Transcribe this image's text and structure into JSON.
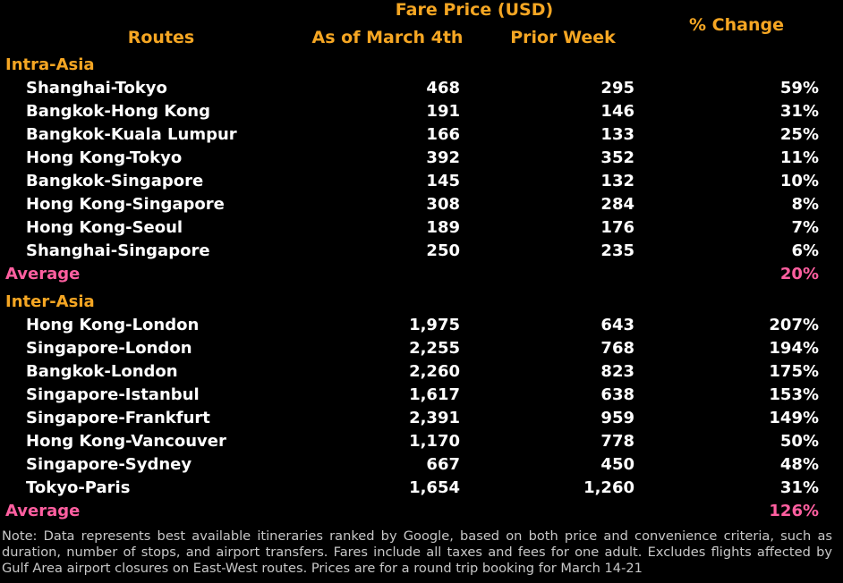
{
  "header": {
    "group": "Fare Price (USD)",
    "columns": [
      "Routes",
      "As of March 4th",
      "Prior Week",
      "% Change"
    ]
  },
  "sections": [
    {
      "title": "Intra-Asia",
      "rows": [
        [
          "Shanghai-Tokyo",
          "468",
          "295",
          "59%"
        ],
        [
          "Bangkok-Hong Kong",
          "191",
          "146",
          "31%"
        ],
        [
          "Bangkok-Kuala Lumpur",
          "166",
          "133",
          "25%"
        ],
        [
          "Hong Kong-Tokyo",
          "392",
          "352",
          "11%"
        ],
        [
          "Bangkok-Singapore",
          "145",
          "132",
          "10%"
        ],
        [
          "Hong Kong-Singapore",
          "308",
          "284",
          "8%"
        ],
        [
          "Hong Kong-Seoul",
          "189",
          "176",
          "7%"
        ],
        [
          "Shanghai-Singapore",
          "250",
          "235",
          "6%"
        ]
      ],
      "average": {
        "label": "Average",
        "change": "20%"
      }
    },
    {
      "title": "Inter-Asia",
      "rows": [
        [
          "Hong Kong-London",
          "1,975",
          "643",
          "207%"
        ],
        [
          "Singapore-London",
          "2,255",
          "768",
          "194%"
        ],
        [
          "Bangkok-London",
          "2,260",
          "823",
          "175%"
        ],
        [
          "Singapore-Istanbul",
          "1,617",
          "638",
          "153%"
        ],
        [
          "Singapore-Frankfurt",
          "2,391",
          "959",
          "149%"
        ],
        [
          "Hong Kong-Vancouver",
          "1,170",
          "778",
          "50%"
        ],
        [
          "Singapore-Sydney",
          "667",
          "450",
          "48%"
        ],
        [
          "Tokyo-Paris",
          "1,654",
          "1,260",
          "31%"
        ]
      ],
      "average": {
        "label": "Average",
        "change": "126%"
      }
    }
  ],
  "note": "Note: Data represents best available itineraries ranked by Google, based on both price and convenience criteria, such as duration, number of stops, and airport transfers. Fares include all taxes and fees for one adult. Excludes flights affected by Gulf Area airport closures on East-West routes. Prices are for a round trip booking for March 14-21"
}
